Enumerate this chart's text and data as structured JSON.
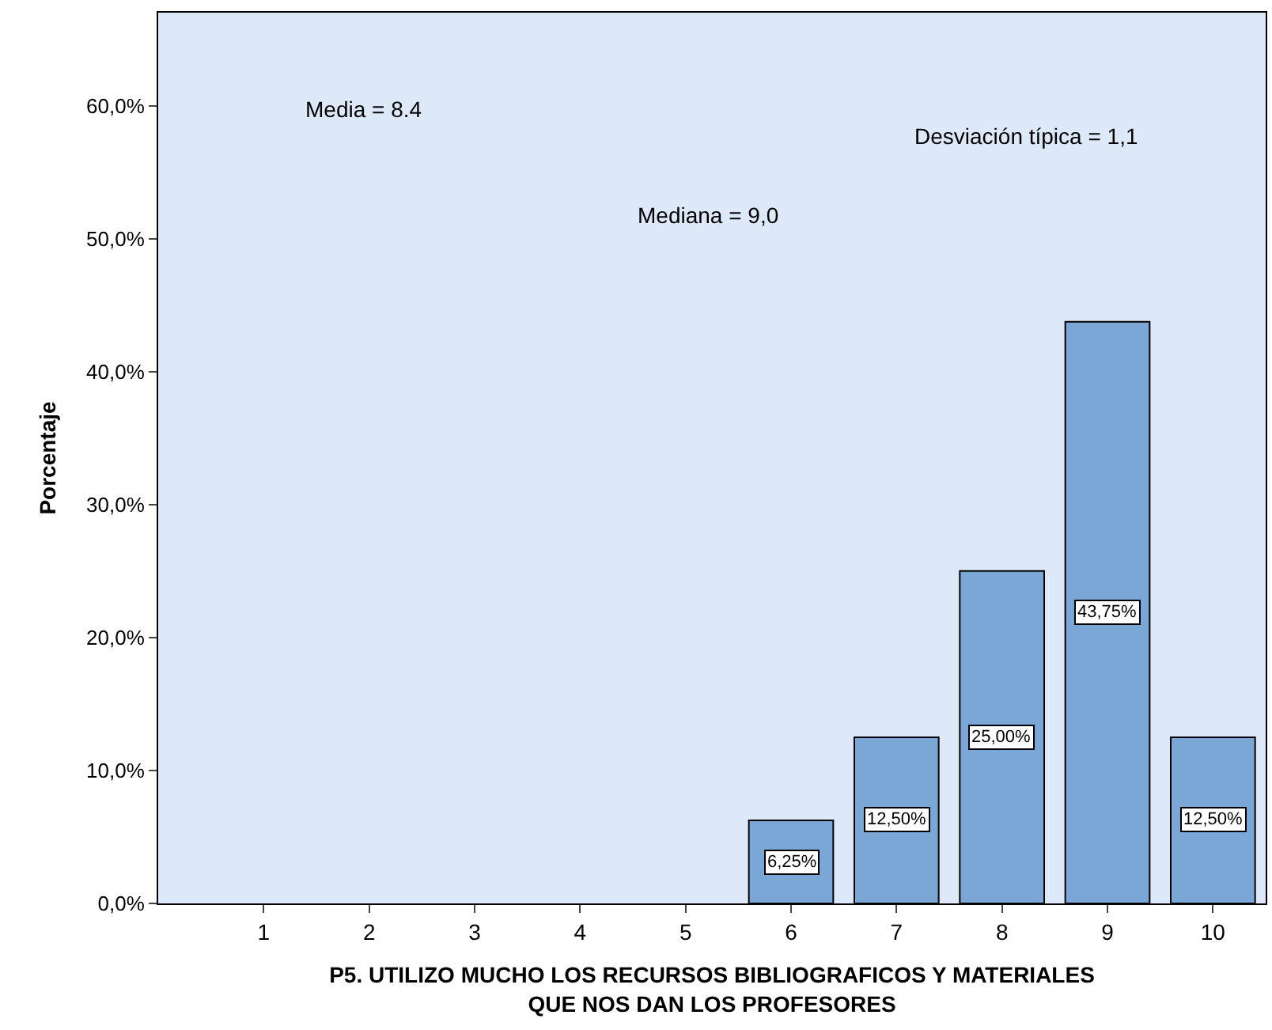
{
  "chart_data": {
    "type": "bar",
    "xlabel": "P5. UTILIZO MUCHO LOS RECURSOS BIBLIOGRAFICOS Y MATERIALES QUE NOS DAN LOS PROFESORES",
    "ylabel": "Porcentaje",
    "categories": [
      "1",
      "2",
      "3",
      "4",
      "5",
      "6",
      "7",
      "8",
      "9",
      "10"
    ],
    "values": [
      null,
      null,
      null,
      null,
      null,
      6.25,
      12.5,
      25.0,
      43.75,
      12.5
    ],
    "value_labels": [
      null,
      null,
      null,
      null,
      null,
      "6,25%",
      "12,50%",
      "25,00%",
      "43,75%",
      "12,50%"
    ],
    "color": "#7ba7d6",
    "ylim": [
      0,
      67
    ],
    "yticks": [
      {
        "value": 0,
        "label": "0,0%"
      },
      {
        "value": 10,
        "label": "10,0%"
      },
      {
        "value": 20,
        "label": "20,0%"
      },
      {
        "value": 30,
        "label": "30,0%"
      },
      {
        "value": 40,
        "label": "40,0%"
      },
      {
        "value": 50,
        "label": "50,0%"
      },
      {
        "value": 60,
        "label": "60,0%"
      }
    ],
    "annotations": [
      "Media = 8.4",
      "Desviación típica = 1,1",
      "Mediana = 9,0"
    ],
    "grid": false,
    "legend": false
  }
}
